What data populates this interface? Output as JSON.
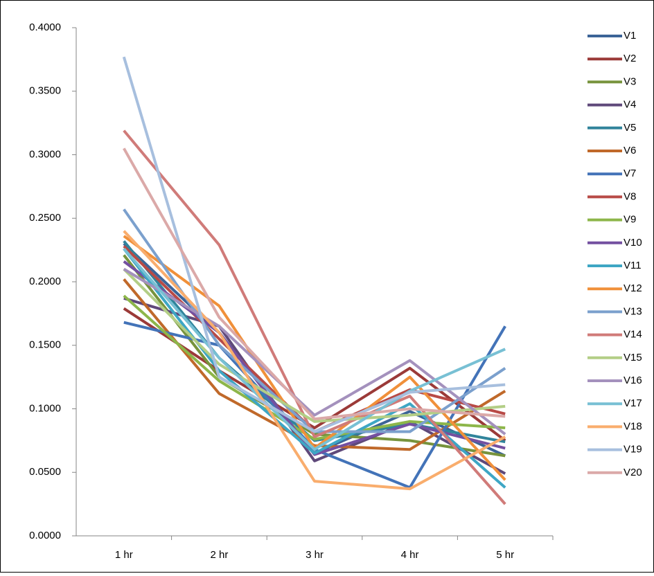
{
  "chart_data": {
    "type": "line",
    "categories": [
      "1 hr",
      "2 hr",
      "3 hr",
      "4 hr",
      "5 hr"
    ],
    "ylim": [
      0,
      0.4
    ],
    "yticks": [
      {
        "value": 0,
        "label": "0.0000"
      },
      {
        "value": 0.05,
        "label": "0.0500"
      },
      {
        "value": 0.1,
        "label": "0.1000"
      },
      {
        "value": 0.15,
        "label": "0.1500"
      },
      {
        "value": 0.2,
        "label": "0.2000"
      },
      {
        "value": 0.25,
        "label": "0.2500"
      },
      {
        "value": 0.3,
        "label": "0.3000"
      },
      {
        "value": 0.35,
        "label": "0.3500"
      },
      {
        "value": 0.4,
        "label": "0.4000"
      }
    ],
    "legend": "right",
    "series": [
      {
        "name": "V1",
        "color": "#3c6497",
        "values": [
          0.23,
          0.16,
          0.065,
          0.098,
          0.063
        ]
      },
      {
        "name": "V2",
        "color": "#9b3a38",
        "values": [
          0.179,
          0.13,
          0.085,
          0.132,
          0.075
        ]
      },
      {
        "name": "V3",
        "color": "#77933c",
        "values": [
          0.221,
          0.125,
          0.08,
          0.075,
          0.063
        ]
      },
      {
        "name": "V4",
        "color": "#5f497a",
        "values": [
          0.187,
          0.165,
          0.059,
          0.09,
          0.049
        ]
      },
      {
        "name": "V5",
        "color": "#31849b",
        "values": [
          0.232,
          0.14,
          0.075,
          0.088,
          0.074
        ]
      },
      {
        "name": "V6",
        "color": "#c0692a",
        "values": [
          0.202,
          0.112,
          0.071,
          0.068,
          0.114
        ]
      },
      {
        "name": "V7",
        "color": "#4373b8",
        "values": [
          0.168,
          0.15,
          0.068,
          0.038,
          0.165
        ]
      },
      {
        "name": "V8",
        "color": "#b84a46",
        "values": [
          0.228,
          0.155,
          0.082,
          0.115,
          0.096
        ]
      },
      {
        "name": "V9",
        "color": "#8db64a",
        "values": [
          0.189,
          0.122,
          0.076,
          0.09,
          0.085
        ]
      },
      {
        "name": "V10",
        "color": "#7450a0",
        "values": [
          0.216,
          0.16,
          0.064,
          0.088,
          0.069
        ]
      },
      {
        "name": "V11",
        "color": "#3ea6c4",
        "values": [
          0.226,
          0.13,
          0.065,
          0.104,
          0.038
        ]
      },
      {
        "name": "V12",
        "color": "#f0903a",
        "values": [
          0.236,
          0.181,
          0.069,
          0.125,
          0.044
        ]
      },
      {
        "name": "V13",
        "color": "#7ba0cd",
        "values": [
          0.257,
          0.15,
          0.082,
          0.082,
          0.132
        ]
      },
      {
        "name": "V14",
        "color": "#d07b79",
        "values": [
          0.319,
          0.229,
          0.078,
          0.11,
          0.025
        ]
      },
      {
        "name": "V15",
        "color": "#b3ce86",
        "values": [
          0.21,
          0.135,
          0.09,
          0.095,
          0.102
        ]
      },
      {
        "name": "V16",
        "color": "#a491bd",
        "values": [
          0.21,
          0.165,
          0.095,
          0.138,
          0.08
        ]
      },
      {
        "name": "V17",
        "color": "#78c0d4",
        "values": [
          0.226,
          0.14,
          0.068,
          0.114,
          0.147
        ]
      },
      {
        "name": "V18",
        "color": "#f9ad6d",
        "values": [
          0.24,
          0.16,
          0.043,
          0.037,
          0.078
        ]
      },
      {
        "name": "V19",
        "color": "#a7bfde",
        "values": [
          0.377,
          0.125,
          0.082,
          0.113,
          0.119
        ]
      },
      {
        "name": "V20",
        "color": "#dba9a8",
        "values": [
          0.305,
          0.172,
          0.092,
          0.1,
          0.094
        ]
      }
    ]
  }
}
